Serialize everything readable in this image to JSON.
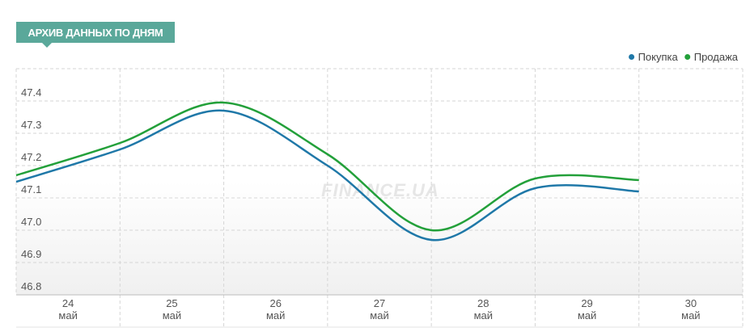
{
  "chart_data": {
    "type": "line",
    "title": "АРХИВ ДАННЫХ ПО ДНЯМ",
    "watermark": "FINANCE.UA",
    "categories": [
      {
        "day": "24",
        "month": "май"
      },
      {
        "day": "25",
        "month": "май"
      },
      {
        "day": "26",
        "month": "май"
      },
      {
        "day": "27",
        "month": "май"
      },
      {
        "day": "28",
        "month": "май"
      },
      {
        "day": "29",
        "month": "май"
      },
      {
        "day": "30",
        "month": "май"
      }
    ],
    "series": [
      {
        "name": "Покупка",
        "color": "#1f78a8",
        "values": [
          47.15,
          47.25,
          47.37,
          47.2,
          46.97,
          47.13,
          47.12
        ]
      },
      {
        "name": "Продажа",
        "color": "#23a03a",
        "values": [
          47.17,
          47.27,
          47.395,
          47.235,
          47.0,
          47.16,
          47.155
        ]
      }
    ],
    "ylim": [
      46.8,
      47.5
    ],
    "yticks": [
      46.8,
      46.9,
      {
        "value": 47.0,
        "label": "47.0"
      },
      47.1,
      47.2,
      47.3,
      47.4
    ],
    "grid": true,
    "legend": "top-right"
  }
}
